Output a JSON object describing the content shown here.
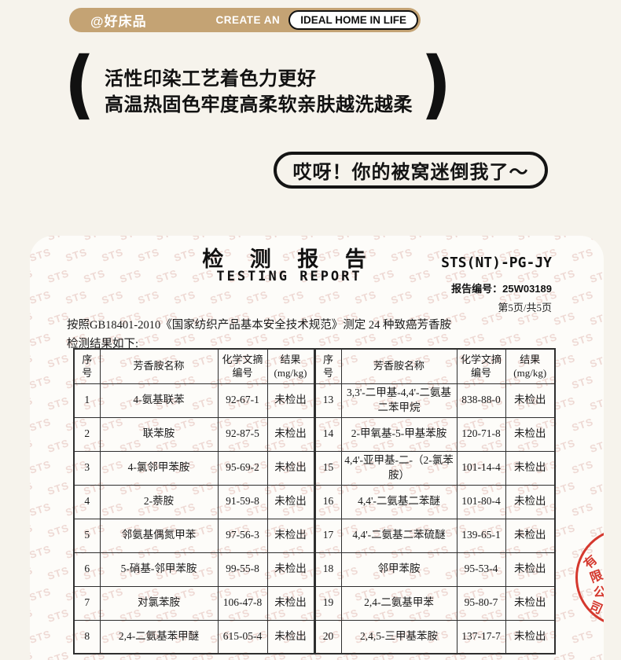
{
  "header": {
    "brand": "@好床品",
    "create_an": "CREATE AN",
    "ideal_home": "IDEAL HOME IN LIFE",
    "pill_color": "#c4a374"
  },
  "tagline": {
    "paren_left": "(",
    "paren_right": ")",
    "line1": "活性印染工艺着色力更好",
    "line2": "高温热固色牢度高柔软亲肤越洗越柔"
  },
  "bubble": {
    "text": "哎呀！你的被窝迷倒我了～"
  },
  "report": {
    "title": "检 测 报 告",
    "subtitle": "TESTING REPORT",
    "code": "STS(NT)-PG-JY",
    "report_no": "报告编号：25W03189",
    "page_info": "第5页/共5页",
    "intro_line1": "按照GB18401-2010《国家纺织产品基本安全技术规范》测定 24 种致癌芳香胺",
    "intro_line2": "检测结果如下:",
    "watermark": "STS",
    "stamp_chars": [
      "有",
      "限",
      "公",
      "司"
    ],
    "stamp_color": "#d5382e"
  },
  "table": {
    "headers": [
      "序\n号",
      "芳香胺名称",
      "化学文摘\n编号",
      "结果\n(mg/kg)",
      "序\n号",
      "芳香胺名称",
      "化学文摘\n编号",
      "结果\n(mg/kg)"
    ],
    "rows": [
      [
        "1",
        "4-氨基联苯",
        "92-67-1",
        "未检出",
        "13",
        "3,3'-二甲基-4,4'-二氨基二苯甲烷",
        "838-88-0",
        "未检出"
      ],
      [
        "2",
        "联苯胺",
        "92-87-5",
        "未检出",
        "14",
        "2-甲氧基-5-甲基苯胺",
        "120-71-8",
        "未检出"
      ],
      [
        "3",
        "4-氯邻甲苯胺",
        "95-69-2",
        "未检出",
        "15",
        "4,4'-亚甲基-二-（2-氯苯胺）",
        "101-14-4",
        "未检出"
      ],
      [
        "4",
        "2-萘胺",
        "91-59-8",
        "未检出",
        "16",
        "4,4'-二氨基二苯醚",
        "101-80-4",
        "未检出"
      ],
      [
        "5",
        "邻氨基偶氮甲苯",
        "97-56-3",
        "未检出",
        "17",
        "4,4'-二氨基二苯硫醚",
        "139-65-1",
        "未检出"
      ],
      [
        "6",
        "5-硝基-邻甲苯胺",
        "99-55-8",
        "未检出",
        "18",
        "邻甲苯胺",
        "95-53-4",
        "未检出"
      ],
      [
        "7",
        "对氯苯胺",
        "106-47-8",
        "未检出",
        "19",
        "2,4-二氨基甲苯",
        "95-80-7",
        "未检出"
      ],
      [
        "8",
        "2,4-二氨基苯甲醚",
        "615-05-4",
        "未检出",
        "20",
        "2,4,5-三甲基苯胺",
        "137-17-7",
        "未检出"
      ]
    ]
  }
}
